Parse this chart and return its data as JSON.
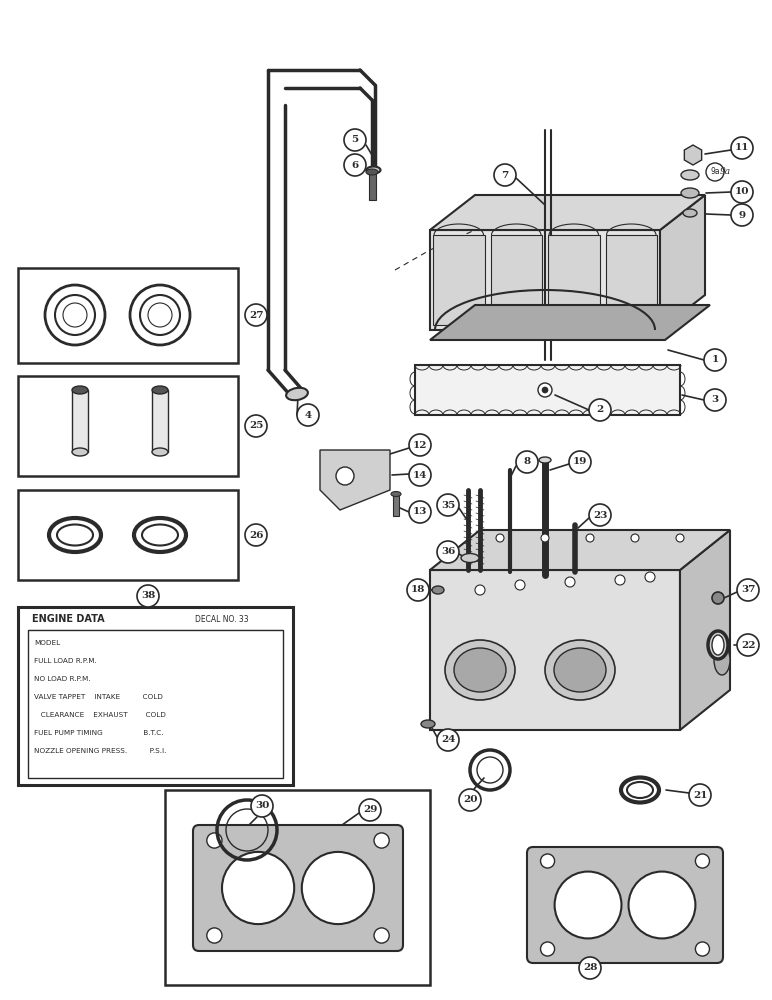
{
  "bg_color": "#ffffff",
  "line_color": "#2a2a2a",
  "fig_width": 7.72,
  "fig_height": 10.0,
  "engine_fields": [
    "MODEL",
    "FULL LOAD R.P.M.",
    "NO LOAD R.P.M.",
    "VALVE TAPPET    INTAKE          COLD",
    "   CLEARANCE    EXHAUST        COLD",
    "FUEL PUMP TIMING                  B.T.C.",
    "NOZZLE OPENING PRESS.          P.S.I."
  ]
}
